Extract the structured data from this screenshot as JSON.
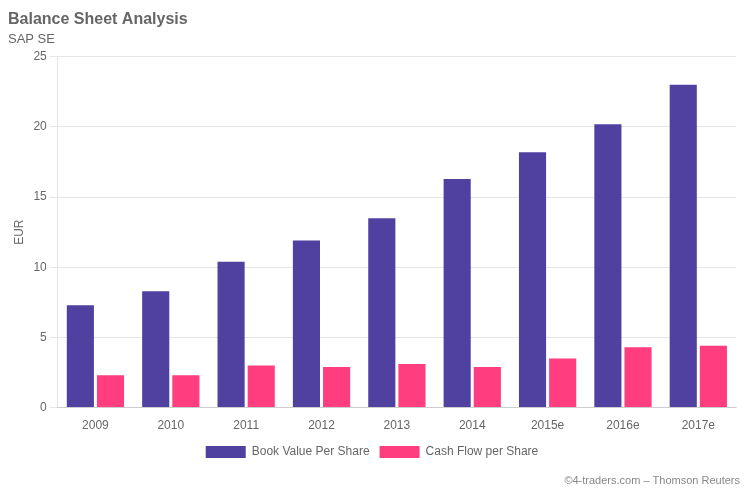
{
  "chart_data": {
    "type": "bar",
    "title": "Balance Sheet Analysis",
    "subtitle": "SAP SE",
    "categories": [
      "2009",
      "2010",
      "2011",
      "2012",
      "2013",
      "2014",
      "2015e",
      "2016e",
      "2017e"
    ],
    "series": [
      {
        "name": "Book Value Per Share",
        "color": "#5040A0",
        "values": [
          7.3,
          8.3,
          10.4,
          11.9,
          13.5,
          16.3,
          18.2,
          20.2,
          23.0
        ]
      },
      {
        "name": "Cash Flow per Share",
        "color": "#FF3D7F",
        "values": [
          2.3,
          2.3,
          3.0,
          2.9,
          3.1,
          2.9,
          3.5,
          4.3,
          4.4
        ]
      }
    ],
    "ylabel": "EUR",
    "ylim": [
      0,
      25
    ],
    "yticks": [
      0,
      5,
      10,
      15,
      20,
      25
    ],
    "grid": true,
    "legend": "bottom",
    "footer": "©4-traders.com – Thomson Reuters"
  }
}
